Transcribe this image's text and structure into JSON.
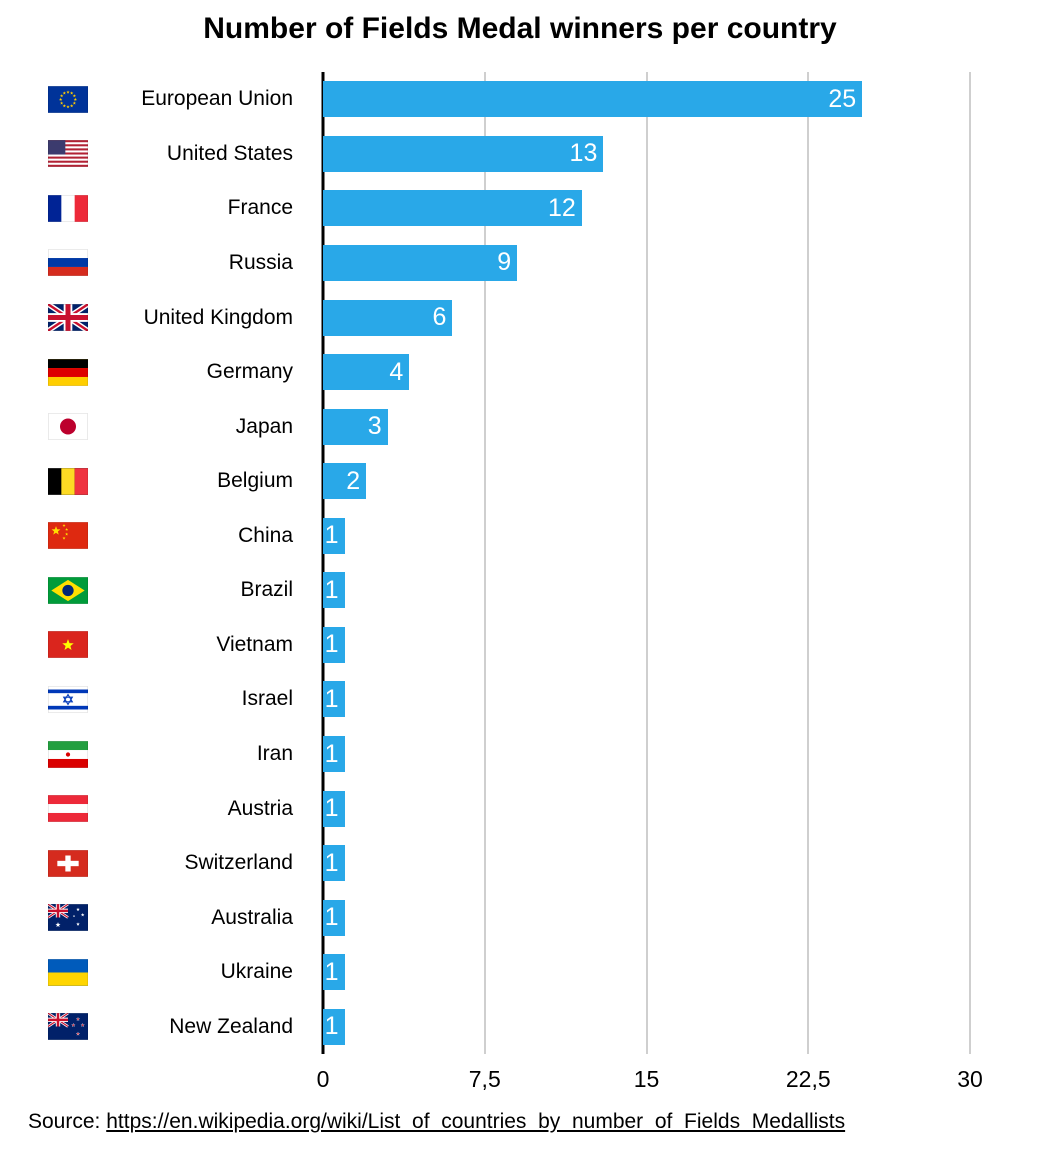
{
  "title": "Number of Fields Medal winners per country",
  "source": {
    "prefix": "Source: ",
    "link": "https://en.wikipedia.org/wiki/List_of_countries_by_number_of_Fields_Medallists"
  },
  "chart_data": {
    "type": "bar",
    "orientation": "horizontal",
    "title": "Number of Fields Medal winners per country",
    "categories": [
      "European Union",
      "United States",
      "France",
      "Russia",
      "United Kingdom",
      "Germany",
      "Japan",
      "Belgium",
      "China",
      "Brazil",
      "Vietnam",
      "Israel",
      "Iran",
      "Austria",
      "Switzerland",
      "Australia",
      "Ukraine",
      "New Zealand"
    ],
    "values": [
      25,
      13,
      12,
      9,
      6,
      4,
      3,
      2,
      1,
      1,
      1,
      1,
      1,
      1,
      1,
      1,
      1,
      1
    ],
    "flags": [
      "eu",
      "us",
      "fr",
      "ru",
      "gb",
      "de",
      "jp",
      "be",
      "cn",
      "br",
      "vn",
      "il",
      "ir",
      "at",
      "ch",
      "au",
      "ua",
      "nz"
    ],
    "xlim": [
      0,
      30
    ],
    "x_ticks": [
      0,
      7.5,
      15,
      22.5,
      30
    ],
    "x_tick_labels": [
      "0",
      "7,5",
      "15",
      "22,5",
      "30"
    ],
    "bar_color": "#29A8E8",
    "value_label_color": "#ffffff",
    "grid": true,
    "legend": "none"
  }
}
